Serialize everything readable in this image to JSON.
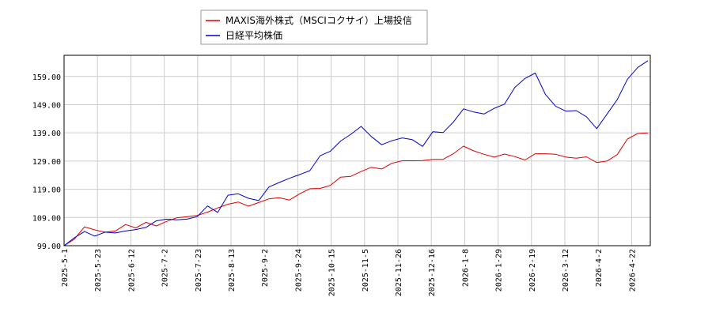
{
  "chart_data": {
    "type": "line",
    "title": "",
    "xlabel": "",
    "ylabel": "",
    "x_ticks": [
      "2025-5-1",
      "2025-5-23",
      "2025-6-12",
      "2025-7-2",
      "2025-7-23",
      "2025-8-13",
      "2025-9-2",
      "2025-9-24",
      "2025-10-15",
      "2025-11-5",
      "2025-11-26",
      "2025-12-16",
      "2026-1-8",
      "2026-1-29",
      "2026-2-19",
      "2026-3-12",
      "2026-4-2",
      "2026-4-22"
    ],
    "y_ticks": [
      "99.00",
      "109.00",
      "119.00",
      "129.00",
      "139.00",
      "149.00",
      "159.00"
    ],
    "ylim": [
      99,
      166.5
    ],
    "grid": true,
    "legend_position": "top-center",
    "series": [
      {
        "name": "MAXIS海外株式（MSCIコクサイ）上場投信",
        "color": "#dd0000",
        "values": [
          99.0,
          101.3,
          105.7,
          104.6,
          103.8,
          104.2,
          106.5,
          105.3,
          107.3,
          106.0,
          107.6,
          108.9,
          109.3,
          109.7,
          110.9,
          112.4,
          113.7,
          114.5,
          113.0,
          114.3,
          115.6,
          116.0,
          115.2,
          117.4,
          119.2,
          119.3,
          120.4,
          123.3,
          123.6,
          125.3,
          126.8,
          126.2,
          128.2,
          129.1,
          129.1,
          129.2,
          129.6,
          129.6,
          131.6,
          134.3,
          132.6,
          131.4,
          130.4,
          131.5,
          130.6,
          129.4,
          131.6,
          131.6,
          131.4,
          130.4,
          130.0,
          130.5,
          128.5,
          129.0,
          131.3,
          136.8,
          138.8,
          139.0
        ]
      },
      {
        "name": "日経平均株価",
        "color": "#0000cc",
        "values": [
          99.0,
          101.8,
          104.0,
          102.4,
          103.8,
          103.5,
          104.2,
          104.7,
          105.5,
          107.8,
          108.4,
          108.2,
          108.4,
          109.3,
          113.1,
          110.8,
          116.9,
          117.4,
          115.8,
          115.0,
          119.8,
          121.4,
          122.9,
          124.2,
          125.6,
          130.9,
          132.5,
          136.1,
          138.5,
          141.3,
          137.7,
          134.8,
          136.2,
          137.2,
          136.6,
          134.2,
          139.4,
          139.1,
          142.8,
          147.5,
          146.4,
          145.7,
          147.7,
          149.2,
          155.1,
          158.3,
          160.2,
          152.6,
          148.4,
          146.7,
          146.9,
          144.7,
          140.5,
          145.6,
          150.8,
          158.0,
          162.2,
          164.6
        ]
      }
    ]
  }
}
